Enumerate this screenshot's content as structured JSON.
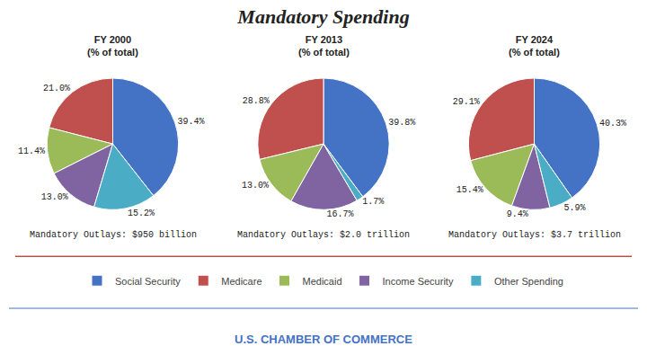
{
  "title": "Mandatory Spending",
  "annotations": [
    "U.S. CHAMBER OF COMMERCE"
  ],
  "chart_data": [
    {
      "type": "pie",
      "title": "FY 2000",
      "subtitle": "(% of total)",
      "categories": [
        "Social Security",
        "Medicare",
        "Medicaid",
        "Income Security",
        "Other Spending"
      ],
      "values": [
        39.4,
        21.0,
        11.4,
        13.0,
        15.2
      ],
      "value_labels": [
        "39.4%",
        "21.0%",
        "11.4%",
        "13.0%",
        "15.2%"
      ],
      "colors": [
        "#4472C4",
        "#C0504D",
        "#9BBB59",
        "#8064A2",
        "#4BACC6"
      ],
      "data_labels": true,
      "legend": "bottom",
      "annotations": [
        "Mandatory Outlays: $950 billion"
      ]
    },
    {
      "type": "pie",
      "title": "FY 2013",
      "subtitle": "(% of total)",
      "categories": [
        "Social Security",
        "Medicare",
        "Medicaid",
        "Income Security",
        "Other Spending"
      ],
      "values": [
        39.8,
        28.8,
        13.0,
        16.7,
        1.7
      ],
      "value_labels": [
        "39.8%",
        "28.8%",
        "13.0%",
        "16.7%",
        "1.7%"
      ],
      "colors": [
        "#4472C4",
        "#C0504D",
        "#9BBB59",
        "#8064A2",
        "#4BACC6"
      ],
      "data_labels": true,
      "legend": "bottom",
      "annotations": [
        "Mandatory Outlays: $2.0 trillion"
      ]
    },
    {
      "type": "pie",
      "title": "FY 2024",
      "subtitle": "(% of total)",
      "categories": [
        "Social Security",
        "Medicare",
        "Medicaid",
        "Income Security",
        "Other Spending"
      ],
      "values": [
        40.3,
        29.1,
        15.4,
        9.4,
        5.9
      ],
      "value_labels": [
        "40.3%",
        "29.1%",
        "15.4%",
        "9.4%",
        "5.9%"
      ],
      "colors": [
        "#4472C4",
        "#C0504D",
        "#9BBB59",
        "#8064A2",
        "#4BACC6"
      ],
      "data_labels": true,
      "legend": "bottom",
      "annotations": [
        "Mandatory Outlays: $3.7 trillion"
      ]
    }
  ]
}
